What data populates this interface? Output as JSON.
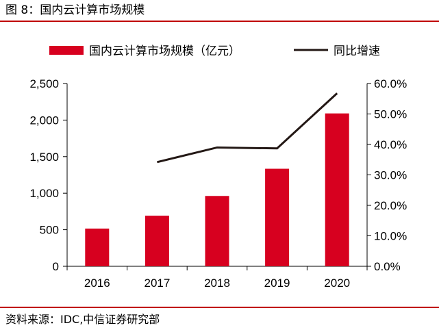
{
  "figure": {
    "title": "图 8：国内云计算市场规模",
    "source": "资料来源：IDC,中信证券研究部",
    "accent_color": "#c00000"
  },
  "chart_data": {
    "type": "bar",
    "categories": [
      "2016",
      "2017",
      "2018",
      "2019",
      "2020"
    ],
    "series": [
      {
        "name": "国内云计算市场规模（亿元）",
        "type": "bar",
        "axis": "left",
        "color": "#d7001f",
        "values": [
          516,
          692,
          962,
          1334,
          2091
        ]
      },
      {
        "name": "同比增速",
        "type": "line",
        "axis": "right",
        "color": "#231815",
        "values": [
          null,
          34.2,
          39.0,
          38.7,
          56.8
        ]
      }
    ],
    "ylim_left": [
      0,
      2500
    ],
    "yticks_left": [
      "0",
      "500",
      "1,000",
      "1,500",
      "2,000",
      "2,500"
    ],
    "ylim_right": [
      0,
      60
    ],
    "yticks_right": [
      "0.0%",
      "10.0%",
      "20.0%",
      "30.0%",
      "40.0%",
      "50.0%",
      "60.0%"
    ],
    "legend_position": "top",
    "grid": false
  }
}
